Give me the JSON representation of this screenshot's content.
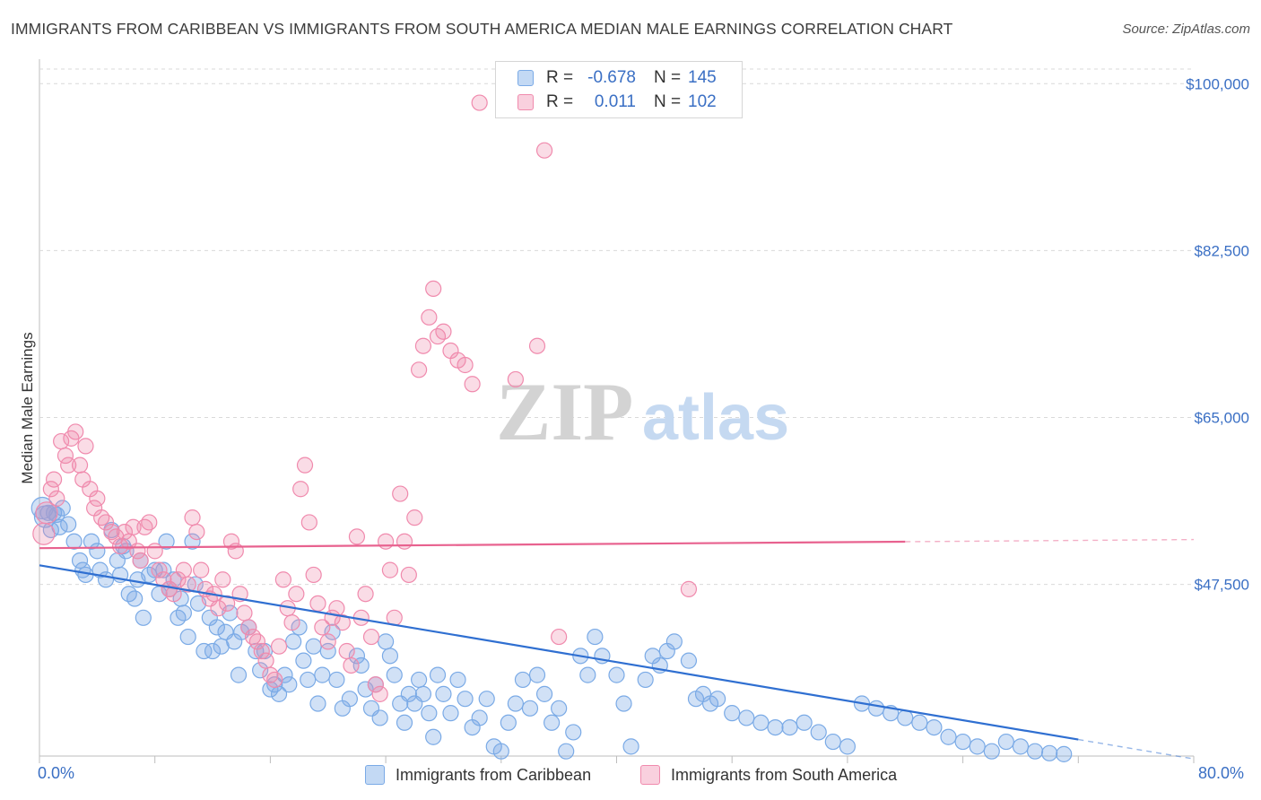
{
  "title": "IMMIGRANTS FROM CARIBBEAN VS IMMIGRANTS FROM SOUTH AMERICA MEDIAN MALE EARNINGS CORRELATION CHART",
  "source": "Source: ZipAtlas.com",
  "watermark": {
    "zip": "ZIP",
    "atlas": "atlas"
  },
  "colors": {
    "blue": "#7aaae6",
    "blue_fill": "rgba(122,170,230,0.35)",
    "blue_line": "#2f6fd1",
    "pink": "#f08aad",
    "pink_fill": "rgba(240,138,173,0.30)",
    "pink_line": "#e8628f",
    "axis_text": "#3a6fc4",
    "grid": "#d9d9d9"
  },
  "legend": {
    "rows": [
      {
        "r_label": "R =",
        "r_value": "-0.678",
        "n_label": "N =",
        "n_value": "145"
      },
      {
        "r_label": "R =",
        "r_value": "0.011",
        "n_label": "N =",
        "n_value": "102"
      }
    ]
  },
  "bottom_legend": {
    "series1": "Immigrants from Caribbean",
    "series2": "Immigrants from South America"
  },
  "x_axis_labels": {
    "min": "0.0%",
    "max": "80.0%"
  },
  "chart_data": {
    "type": "scatter",
    "title": "IMMIGRANTS FROM CARIBBEAN VS IMMIGRANTS FROM SOUTH AMERICA MEDIAN MALE EARNINGS CORRELATION CHART",
    "xlabel": "",
    "ylabel": "Median Male Earnings",
    "xlim": [
      0,
      80
    ],
    "ylim": [
      29500,
      102000
    ],
    "y_ticks": [
      47500,
      65000,
      82500,
      100000
    ],
    "y_tick_labels": [
      "$47,500",
      "$65,000",
      "$82,500",
      "$100,000"
    ],
    "x_tick_labels": [
      "0.0%",
      "80.0%"
    ],
    "grid": true,
    "legend_position": "top-center",
    "series": [
      {
        "name": "Immigrants from Caribbean",
        "color": "#7aaae6",
        "trend": {
          "x": [
            0,
            80
          ],
          "y": [
            49500,
            29200
          ]
        },
        "points": [
          [
            0.2,
            55.5
          ],
          [
            0.4,
            54.6
          ],
          [
            0.6,
            55.0
          ],
          [
            0.8,
            53.2
          ],
          [
            1.0,
            55.0
          ],
          [
            1.2,
            54.8
          ],
          [
            1.4,
            53.5
          ],
          [
            1.6,
            55.5
          ],
          [
            2.0,
            53.8
          ],
          [
            2.4,
            52.0
          ],
          [
            2.8,
            50.0
          ],
          [
            3.0,
            49.0
          ],
          [
            3.2,
            48.5
          ],
          [
            3.6,
            52.0
          ],
          [
            4.0,
            51.0
          ],
          [
            4.2,
            49.0
          ],
          [
            4.6,
            48.0
          ],
          [
            5.0,
            53.2
          ],
          [
            5.4,
            50.0
          ],
          [
            5.6,
            48.5
          ],
          [
            5.8,
            51.5
          ],
          [
            6.0,
            51.0
          ],
          [
            6.2,
            46.5
          ],
          [
            6.6,
            46.0
          ],
          [
            6.8,
            48.0
          ],
          [
            7.0,
            50.0
          ],
          [
            7.2,
            44.0
          ],
          [
            7.6,
            48.5
          ],
          [
            8.0,
            49.0
          ],
          [
            8.3,
            46.5
          ],
          [
            8.6,
            49.0
          ],
          [
            8.8,
            52.0
          ],
          [
            9.0,
            47.0
          ],
          [
            9.3,
            48.0
          ],
          [
            9.6,
            44.0
          ],
          [
            9.8,
            46.0
          ],
          [
            10.0,
            44.5
          ],
          [
            10.3,
            42.0
          ],
          [
            10.6,
            52.0
          ],
          [
            10.8,
            47.5
          ],
          [
            11.0,
            45.5
          ],
          [
            11.4,
            40.5
          ],
          [
            11.8,
            44.0
          ],
          [
            12.0,
            40.5
          ],
          [
            12.3,
            43.0
          ],
          [
            12.6,
            41.0
          ],
          [
            12.9,
            42.5
          ],
          [
            13.2,
            44.5
          ],
          [
            13.5,
            41.5
          ],
          [
            13.8,
            38.0
          ],
          [
            14.0,
            42.5
          ],
          [
            14.5,
            43.0
          ],
          [
            15.0,
            40.5
          ],
          [
            15.3,
            38.5
          ],
          [
            15.6,
            40.5
          ],
          [
            16.0,
            36.5
          ],
          [
            16.3,
            37.0
          ],
          [
            16.6,
            36.0
          ],
          [
            17.0,
            38.0
          ],
          [
            17.3,
            37.0
          ],
          [
            17.6,
            41.5
          ],
          [
            18.0,
            43.0
          ],
          [
            18.3,
            39.5
          ],
          [
            18.6,
            37.5
          ],
          [
            19.0,
            41.0
          ],
          [
            19.3,
            35.0
          ],
          [
            19.6,
            38.0
          ],
          [
            20.0,
            40.5
          ],
          [
            20.3,
            42.5
          ],
          [
            20.6,
            37.5
          ],
          [
            21.0,
            34.5
          ],
          [
            21.5,
            35.5
          ],
          [
            22.0,
            40.0
          ],
          [
            22.3,
            39.0
          ],
          [
            22.6,
            36.5
          ],
          [
            23.0,
            34.5
          ],
          [
            23.3,
            37.0
          ],
          [
            23.6,
            33.5
          ],
          [
            24.0,
            41.5
          ],
          [
            24.3,
            40.0
          ],
          [
            24.6,
            38.0
          ],
          [
            25.0,
            35.0
          ],
          [
            25.3,
            33.0
          ],
          [
            25.6,
            36.0
          ],
          [
            26.0,
            35.0
          ],
          [
            26.3,
            37.5
          ],
          [
            26.6,
            36.0
          ],
          [
            27.0,
            34.0
          ],
          [
            27.3,
            31.5
          ],
          [
            27.6,
            38.0
          ],
          [
            28.0,
            36.0
          ],
          [
            28.5,
            34.0
          ],
          [
            29.0,
            37.5
          ],
          [
            29.5,
            35.5
          ],
          [
            30.0,
            32.5
          ],
          [
            30.5,
            33.5
          ],
          [
            31.0,
            35.5
          ],
          [
            31.5,
            30.5
          ],
          [
            32.0,
            30.0
          ],
          [
            32.5,
            33.0
          ],
          [
            33.0,
            35.0
          ],
          [
            33.5,
            37.5
          ],
          [
            34.0,
            34.5
          ],
          [
            34.5,
            38.0
          ],
          [
            35.0,
            36.0
          ],
          [
            35.5,
            33.0
          ],
          [
            36.0,
            34.5
          ],
          [
            36.5,
            30.0
          ],
          [
            37.0,
            32.0
          ],
          [
            37.5,
            40.0
          ],
          [
            38.0,
            38.0
          ],
          [
            38.5,
            42.0
          ],
          [
            39.0,
            40.0
          ],
          [
            40.0,
            38.0
          ],
          [
            40.5,
            35.0
          ],
          [
            41.0,
            30.5
          ],
          [
            42.0,
            37.5
          ],
          [
            42.5,
            40.0
          ],
          [
            43.0,
            39.0
          ],
          [
            43.5,
            40.5
          ],
          [
            44.0,
            41.5
          ],
          [
            45.0,
            39.5
          ],
          [
            45.5,
            35.5
          ],
          [
            46.0,
            36.0
          ],
          [
            46.5,
            35.0
          ],
          [
            47.0,
            35.5
          ],
          [
            48.0,
            34.0
          ],
          [
            49.0,
            33.5
          ],
          [
            50.0,
            33.0
          ],
          [
            51.0,
            32.5
          ],
          [
            52.0,
            32.5
          ],
          [
            53.0,
            33.0
          ],
          [
            54.0,
            32.0
          ],
          [
            55.0,
            31.0
          ],
          [
            56.0,
            30.5
          ],
          [
            57.0,
            35.0
          ],
          [
            58.0,
            34.5
          ],
          [
            59.0,
            34.0
          ],
          [
            60.0,
            33.5
          ],
          [
            61.0,
            33.0
          ],
          [
            62.0,
            32.5
          ],
          [
            63.0,
            31.5
          ],
          [
            64.0,
            31.0
          ],
          [
            65.0,
            30.5
          ],
          [
            66.0,
            30.0
          ],
          [
            67.0,
            31.0
          ],
          [
            68.0,
            30.5
          ],
          [
            69.0,
            30.0
          ],
          [
            70.0,
            29.8
          ],
          [
            71.0,
            29.7
          ]
        ]
      },
      {
        "name": "Immigrants from South America",
        "color": "#f08aad",
        "trend": {
          "x": [
            0,
            80
          ],
          "y": [
            51300,
            52200
          ]
        },
        "points": [
          [
            0.3,
            52.8
          ],
          [
            0.5,
            55.0
          ],
          [
            0.8,
            57.5
          ],
          [
            1.0,
            58.5
          ],
          [
            1.2,
            56.5
          ],
          [
            1.5,
            62.5
          ],
          [
            1.8,
            61.0
          ],
          [
            2.0,
            60.0
          ],
          [
            2.2,
            62.8
          ],
          [
            2.5,
            63.5
          ],
          [
            2.8,
            60.0
          ],
          [
            3.0,
            58.5
          ],
          [
            3.2,
            62.0
          ],
          [
            3.5,
            57.5
          ],
          [
            3.8,
            55.5
          ],
          [
            4.0,
            56.5
          ],
          [
            4.3,
            54.5
          ],
          [
            4.6,
            54.0
          ],
          [
            5.0,
            53.0
          ],
          [
            5.3,
            52.5
          ],
          [
            5.6,
            51.5
          ],
          [
            5.9,
            53.0
          ],
          [
            6.2,
            52.0
          ],
          [
            6.5,
            53.5
          ],
          [
            6.8,
            51.0
          ],
          [
            7.0,
            50.0
          ],
          [
            7.3,
            53.5
          ],
          [
            7.6,
            54.0
          ],
          [
            8.0,
            51.0
          ],
          [
            8.3,
            49.0
          ],
          [
            8.6,
            48.0
          ],
          [
            9.0,
            47.0
          ],
          [
            9.3,
            46.5
          ],
          [
            9.6,
            48.0
          ],
          [
            10.0,
            49.0
          ],
          [
            10.3,
            47.5
          ],
          [
            10.6,
            54.5
          ],
          [
            10.9,
            53.0
          ],
          [
            11.2,
            49.0
          ],
          [
            11.5,
            47.0
          ],
          [
            11.8,
            46.0
          ],
          [
            12.1,
            46.5
          ],
          [
            12.4,
            45.0
          ],
          [
            12.7,
            48.0
          ],
          [
            13.0,
            45.5
          ],
          [
            13.3,
            52.0
          ],
          [
            13.6,
            51.0
          ],
          [
            13.9,
            46.5
          ],
          [
            14.2,
            44.5
          ],
          [
            14.5,
            43.0
          ],
          [
            14.8,
            42.0
          ],
          [
            15.1,
            41.5
          ],
          [
            15.4,
            40.5
          ],
          [
            15.7,
            39.5
          ],
          [
            16.0,
            38.0
          ],
          [
            16.3,
            37.5
          ],
          [
            16.6,
            41.0
          ],
          [
            16.9,
            48.0
          ],
          [
            17.2,
            45.0
          ],
          [
            17.5,
            43.5
          ],
          [
            17.8,
            46.5
          ],
          [
            18.1,
            57.5
          ],
          [
            18.4,
            60.0
          ],
          [
            18.7,
            54.0
          ],
          [
            19.0,
            48.5
          ],
          [
            19.3,
            45.5
          ],
          [
            19.6,
            43.0
          ],
          [
            20.0,
            41.5
          ],
          [
            20.3,
            44.0
          ],
          [
            20.6,
            45.0
          ],
          [
            21.0,
            43.5
          ],
          [
            21.3,
            40.5
          ],
          [
            21.6,
            39.0
          ],
          [
            22.0,
            52.5
          ],
          [
            22.3,
            44.0
          ],
          [
            22.6,
            46.5
          ],
          [
            23.0,
            42.0
          ],
          [
            23.3,
            37.0
          ],
          [
            23.6,
            36.0
          ],
          [
            24.0,
            52.0
          ],
          [
            24.3,
            49.0
          ],
          [
            24.6,
            44.0
          ],
          [
            25.0,
            57.0
          ],
          [
            25.3,
            52.0
          ],
          [
            25.6,
            48.5
          ],
          [
            26.0,
            54.5
          ],
          [
            26.3,
            70.0
          ],
          [
            26.6,
            72.5
          ],
          [
            27.0,
            75.5
          ],
          [
            27.3,
            78.5
          ],
          [
            27.6,
            73.5
          ],
          [
            28.0,
            74.0
          ],
          [
            28.5,
            72.0
          ],
          [
            29.0,
            71.0
          ],
          [
            29.5,
            70.5
          ],
          [
            30.0,
            68.5
          ],
          [
            30.5,
            98.0
          ],
          [
            33.0,
            69.0
          ],
          [
            34.5,
            72.5
          ],
          [
            35.0,
            93.0
          ],
          [
            36.0,
            42.0
          ],
          [
            45.0,
            47.0
          ]
        ]
      }
    ]
  }
}
